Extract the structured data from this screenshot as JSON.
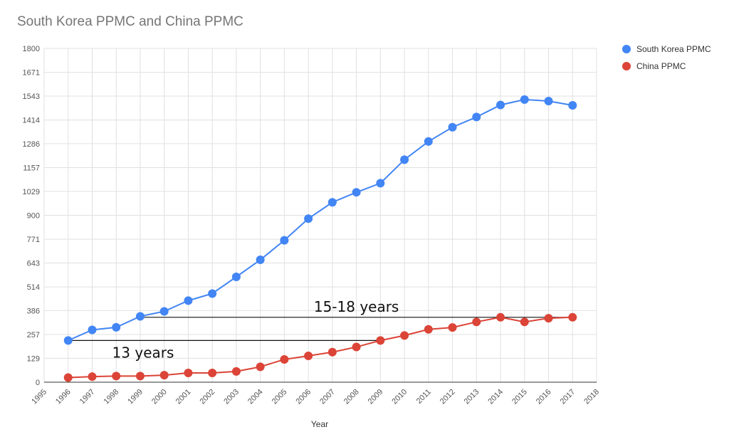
{
  "chart_data": {
    "type": "line",
    "title": "South Korea PPMC and China PPMC",
    "xlabel": "Year",
    "ylabel": "",
    "xlim": [
      1995,
      2018
    ],
    "ylim": [
      0,
      1800
    ],
    "x_ticks": [
      "1995",
      "1996",
      "1997",
      "1998",
      "1999",
      "2000",
      "2001",
      "2002",
      "2003",
      "2004",
      "2005",
      "2006",
      "2007",
      "2008",
      "2009",
      "2010",
      "2011",
      "2012",
      "2013",
      "2014",
      "2015",
      "2016",
      "2017",
      "2018"
    ],
    "y_ticks": [
      "0",
      "129",
      "257",
      "386",
      "514",
      "643",
      "771",
      "900",
      "1029",
      "1157",
      "1286",
      "1414",
      "1543",
      "1671",
      "1800"
    ],
    "x": [
      1996,
      1997,
      1998,
      1999,
      2000,
      2001,
      2002,
      2003,
      2004,
      2005,
      2006,
      2007,
      2008,
      2009,
      2010,
      2011,
      2012,
      2013,
      2014,
      2015,
      2016,
      2017
    ],
    "series": [
      {
        "name": "South Korea PPMC",
        "color": "#4285f4",
        "values": [
          225,
          282,
          296,
          355,
          382,
          440,
          478,
          568,
          660,
          765,
          882,
          970,
          1024,
          1073,
          1200,
          1298,
          1375,
          1430,
          1495,
          1524,
          1516,
          1493
        ]
      },
      {
        "name": "China PPMC",
        "color": "#db4437",
        "values": [
          25,
          30,
          33,
          33,
          38,
          50,
          50,
          58,
          83,
          123,
          142,
          162,
          190,
          225,
          252,
          285,
          295,
          325,
          350,
          325,
          345,
          350
        ]
      }
    ],
    "legend_position": "right",
    "grid": true,
    "annotations": [
      {
        "text": "15-18 years",
        "x_start": 1999,
        "x_end": 2017,
        "y": 350
      },
      {
        "text": "13 years",
        "x_start": 1996,
        "x_end": 2009,
        "y": 225
      }
    ]
  }
}
